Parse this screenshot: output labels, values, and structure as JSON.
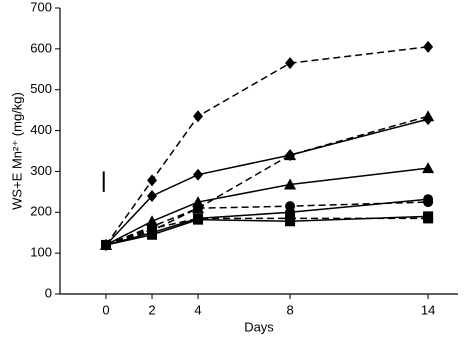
{
  "chart_data": {
    "type": "line",
    "x_label": "Days",
    "y_label": "WS+E Mn²⁺ (mg/kg)",
    "x": [
      0,
      2,
      4,
      8,
      14
    ],
    "xlim": [
      -2,
      15.3
    ],
    "xticks": [
      0,
      2,
      4,
      8,
      14
    ],
    "ylim": [
      0,
      700
    ],
    "yticks": [
      0,
      100,
      200,
      300,
      400,
      500,
      600,
      700
    ],
    "error_bar": {
      "x": -0.1,
      "low": 250,
      "high": 300
    },
    "series": [
      {
        "color": "#000000",
        "marker": "diamond",
        "dashed": true,
        "values": [
          120,
          278,
          435,
          565,
          605
        ]
      },
      {
        "color": "#000000",
        "marker": "diamond",
        "dashed": false,
        "values": [
          120,
          240,
          292,
          340,
          428
        ]
      },
      {
        "color": "#000000",
        "marker": "triangle",
        "dashed": true,
        "values": [
          120,
          165,
          210,
          340,
          435
        ]
      },
      {
        "color": "#000000",
        "marker": "triangle",
        "dashed": false,
        "values": [
          120,
          178,
          225,
          268,
          308
        ]
      },
      {
        "color": "#000000",
        "marker": "circle",
        "dashed": true,
        "values": [
          120,
          155,
          210,
          215,
          225
        ]
      },
      {
        "color": "#000000",
        "marker": "circle",
        "dashed": false,
        "values": [
          120,
          150,
          185,
          200,
          232
        ]
      },
      {
        "color": "#000000",
        "marker": "square",
        "dashed": true,
        "values": [
          120,
          160,
          185,
          185,
          185
        ]
      },
      {
        "color": "#000000",
        "marker": "square",
        "dashed": false,
        "values": [
          120,
          145,
          182,
          178,
          190
        ]
      }
    ]
  }
}
